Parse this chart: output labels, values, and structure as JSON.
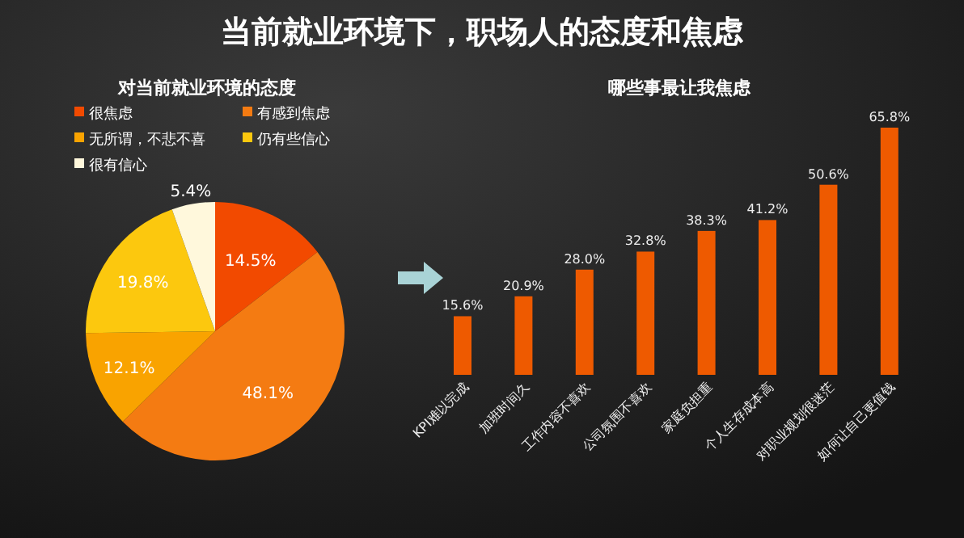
{
  "chart_data": [
    {
      "type": "pie",
      "title": "当前就业环境下，职场人的态度和焦虑",
      "subtitle": "对当前就业环境的态度",
      "legend": "top",
      "categories": [
        "很焦虑",
        "有感到焦虑",
        "无所谓，不悲不喜",
        "仍有些信心",
        "很有信心"
      ],
      "values": [
        14.5,
        48.1,
        12.1,
        19.8,
        5.4
      ],
      "value_labels": [
        "14.5%",
        "48.1%",
        "12.1%",
        "19.8%",
        "5.4%"
      ],
      "colors": [
        "#f24a00",
        "#f47b12",
        "#f9a300",
        "#fcc80e",
        "#fff8dc"
      ]
    },
    {
      "type": "bar",
      "subtitle": "哪些事最让我焦虑",
      "categories": [
        "KPI难以完成",
        "加班时间久",
        "工作内容不喜欢",
        "公司氛围不喜欢",
        "家庭负担重",
        "个人生存成本高",
        "对职业规划很迷茫",
        "如何让自己更值钱"
      ],
      "values": [
        15.6,
        20.9,
        28.0,
        32.8,
        38.3,
        41.2,
        50.6,
        65.8
      ],
      "value_labels": [
        "15.6%",
        "20.9%",
        "28.0%",
        "32.8%",
        "38.3%",
        "41.2%",
        "50.6%",
        "65.8%"
      ],
      "color": "#ee5a00"
    }
  ]
}
